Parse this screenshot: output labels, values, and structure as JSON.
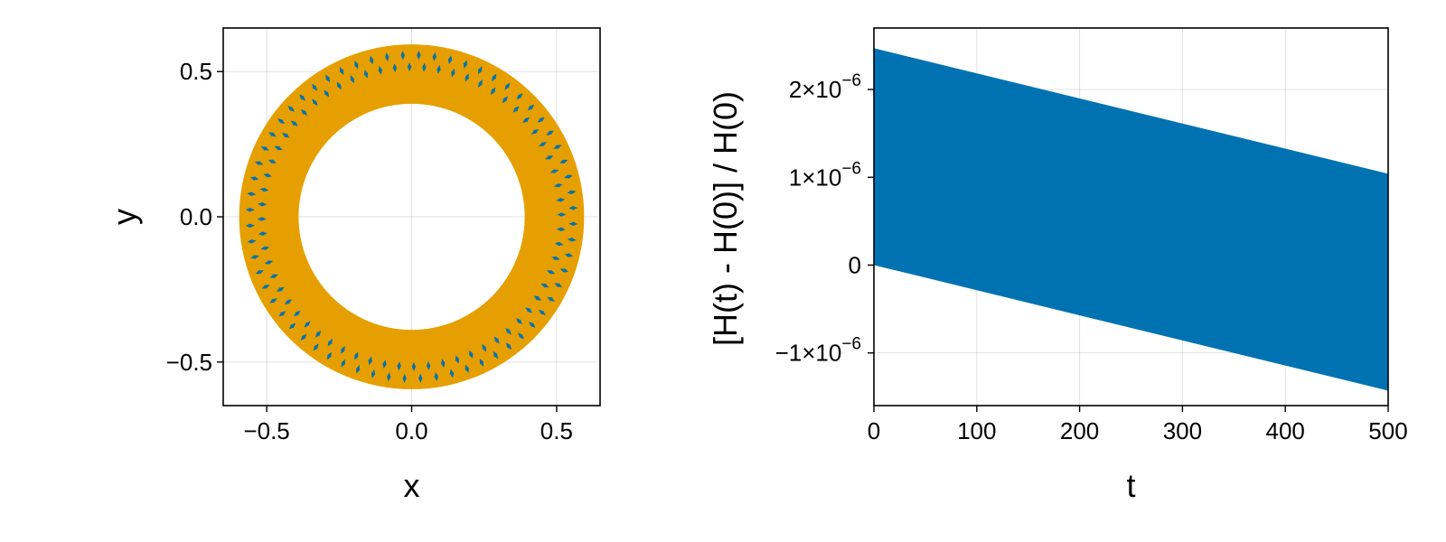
{
  "chart_data": [
    {
      "type": "scatter",
      "xlabel": "x",
      "ylabel": "y",
      "xlim": [
        -0.65,
        0.65
      ],
      "ylim": [
        -0.65,
        0.65
      ],
      "xticks": [
        -0.5,
        0.0,
        0.5
      ],
      "yticks": [
        -0.5,
        0.0,
        0.5
      ],
      "xtick_labels": [
        "−0.5",
        "0.0",
        "0.5"
      ],
      "ytick_labels": [
        "−0.5",
        "0.0",
        "0.5"
      ],
      "grid": true,
      "aspect": "equal",
      "series": [
        {
          "color": "#0072b2",
          "pattern": "annulus",
          "inner_radius": 0.39,
          "outer_radius": 0.595
        },
        {
          "color": "#e69f00",
          "pattern": "annulus_rosette",
          "inner_radius": 0.39,
          "outer_radius": 0.595,
          "petals": 64
        }
      ]
    },
    {
      "type": "area",
      "xlabel": "t",
      "ylabel": "[H(t) - H(0)] / H(0)",
      "xlim": [
        0,
        500
      ],
      "ylim": [
        -1.6e-06,
        2.7e-06
      ],
      "xticks": [
        0,
        100,
        200,
        300,
        400,
        500
      ],
      "xtick_labels": [
        "0",
        "100",
        "200",
        "300",
        "400",
        "500"
      ],
      "yticks": [
        -1e-06,
        0,
        1e-06,
        2e-06
      ],
      "ytick_labels": [
        {
          "mant": "−1×10",
          "exp": "−6"
        },
        {
          "mant": "0",
          "exp": ""
        },
        {
          "mant": "1×10",
          "exp": "−6"
        },
        {
          "mant": "2×10",
          "exp": "−6"
        }
      ],
      "grid": true,
      "series": [
        {
          "color": "#0072b2",
          "x": [
            0,
            500
          ],
          "upper": [
            2.47e-06,
            1.04e-06
          ],
          "lower": [
            0,
            -1.43e-06
          ]
        }
      ]
    }
  ]
}
